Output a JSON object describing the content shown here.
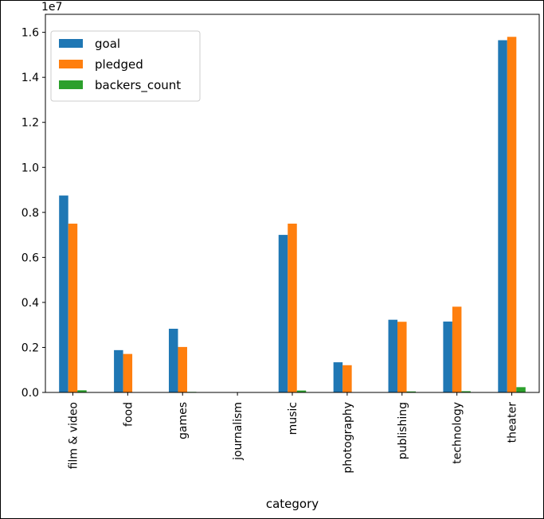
{
  "chart_data": {
    "type": "bar",
    "categories": [
      "film & video",
      "food",
      "games",
      "journalism",
      "music",
      "photography",
      "publishing",
      "technology",
      "theater"
    ],
    "series": [
      {
        "name": "goal",
        "color": "#1f77b4",
        "values": [
          8750000,
          1880000,
          2830000,
          0,
          7000000,
          1340000,
          3230000,
          3150000,
          15650000
        ]
      },
      {
        "name": "pledged",
        "color": "#ff7f0e",
        "values": [
          7500000,
          1710000,
          2020000,
          0,
          7500000,
          1210000,
          3140000,
          3810000,
          15800000
        ]
      },
      {
        "name": "backers_count",
        "color": "#2ca02c",
        "values": [
          95000,
          15000,
          25000,
          0,
          85000,
          10000,
          45000,
          55000,
          235000
        ]
      }
    ],
    "xlabel": "category",
    "ylabel": "",
    "ylim": [
      0,
      16800000
    ],
    "y_ticks": [
      "0.0",
      "0.2",
      "0.4",
      "0.6",
      "0.8",
      "1.0",
      "1.2",
      "1.4",
      "1.6"
    ],
    "y_tick_values": [
      0,
      2000000,
      4000000,
      6000000,
      8000000,
      10000000,
      12000000,
      14000000,
      16000000
    ],
    "y_offset_label": "1e7",
    "grid": false,
    "legend_position": "top-left"
  }
}
